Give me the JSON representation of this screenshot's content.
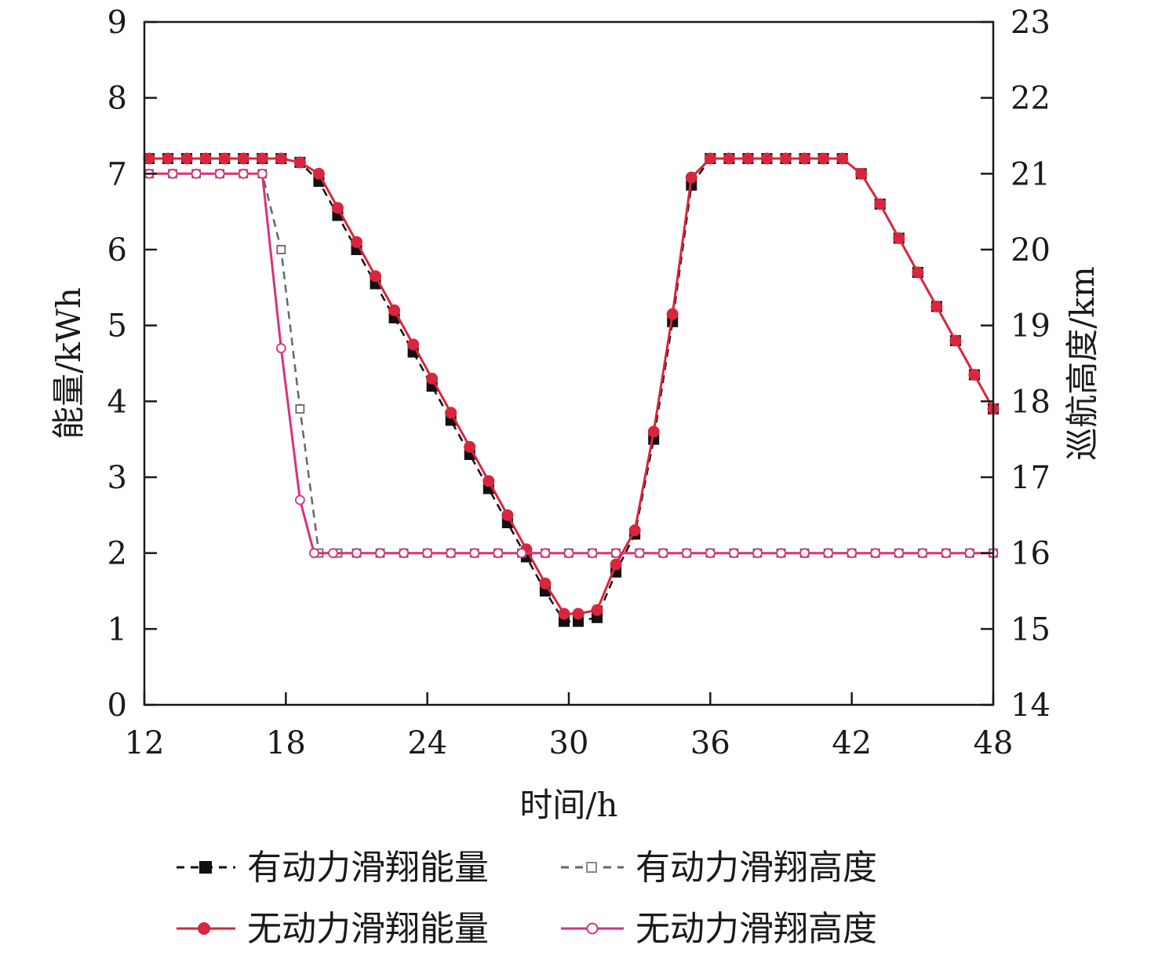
{
  "chart_data": {
    "type": "line",
    "xlabel": "时间/h",
    "ylabel_left": "能量/kWh",
    "ylabel_right": "巡航高度/km",
    "xlim": [
      12,
      48
    ],
    "ylim_left": [
      0,
      9
    ],
    "ylim_right": [
      14,
      23
    ],
    "xticks": [
      12,
      18,
      24,
      30,
      36,
      42,
      48
    ],
    "yticks_left": [
      0,
      1,
      2,
      3,
      4,
      5,
      6,
      7,
      8,
      9
    ],
    "yticks_right": [
      14,
      15,
      16,
      17,
      18,
      19,
      20,
      21,
      22,
      23
    ],
    "grid": false,
    "legend_position": "bottom",
    "series": [
      {
        "name": "有动力滑翔能量",
        "axis": "left",
        "color": "#111111",
        "line_style": "dashed",
        "marker": "filled-square",
        "x": [
          12.2,
          13.0,
          13.8,
          14.6,
          15.4,
          16.2,
          17.0,
          17.8,
          18.6,
          19.4,
          20.2,
          21.0,
          21.8,
          22.6,
          23.4,
          24.2,
          25.0,
          25.8,
          26.6,
          27.4,
          28.2,
          29.0,
          29.8,
          30.4,
          31.2,
          32.0,
          32.8,
          33.6,
          34.4,
          35.2,
          36.0,
          36.8,
          37.6,
          38.4,
          39.2,
          40.0,
          40.8,
          41.6,
          42.4,
          43.2,
          44.0,
          44.8,
          45.6,
          46.4,
          47.2,
          48.0
        ],
        "values": [
          7.2,
          7.2,
          7.2,
          7.2,
          7.2,
          7.2,
          7.2,
          7.2,
          7.15,
          6.9,
          6.45,
          6.0,
          5.55,
          5.1,
          4.65,
          4.2,
          3.75,
          3.3,
          2.85,
          2.4,
          1.95,
          1.5,
          1.1,
          1.1,
          1.15,
          1.75,
          2.25,
          3.5,
          5.05,
          6.85,
          7.2,
          7.2,
          7.2,
          7.2,
          7.2,
          7.2,
          7.2,
          7.2,
          7.0,
          6.6,
          6.15,
          5.7,
          5.25,
          4.8,
          4.35,
          3.9
        ]
      },
      {
        "name": "有动力滑翔高度",
        "axis": "right",
        "color": "#666666",
        "line_style": "dashed",
        "marker": "open-square",
        "x": [
          12.2,
          13.2,
          14.2,
          15.2,
          16.2,
          17.0,
          17.8,
          18.6,
          19.4,
          20.2,
          21.0,
          22.0,
          23.0,
          24.0,
          25.0,
          26.0,
          27.0,
          28.0,
          29.0,
          30.0,
          31.0,
          32.0,
          33.0,
          34.0,
          35.0,
          36.0,
          37.0,
          38.0,
          39.0,
          40.0,
          41.0,
          42.0,
          43.0,
          44.0,
          45.0,
          46.0,
          47.0,
          48.0
        ],
        "values": [
          21.0,
          21.0,
          21.0,
          21.0,
          21.0,
          21.0,
          20.0,
          17.9,
          16.0,
          16.0,
          16.0,
          16.0,
          16.0,
          16.0,
          16.0,
          16.0,
          16.0,
          16.0,
          16.0,
          16.0,
          16.0,
          16.0,
          16.0,
          16.0,
          16.0,
          16.0,
          16.0,
          16.0,
          16.0,
          16.0,
          16.0,
          16.0,
          16.0,
          16.0,
          16.0,
          16.0,
          16.0,
          16.0
        ]
      },
      {
        "name": "无动力滑翔能量",
        "axis": "left",
        "color": "#d7263d",
        "line_style": "solid",
        "marker": "filled-circle",
        "x": [
          12.2,
          13.0,
          13.8,
          14.6,
          15.4,
          16.2,
          17.0,
          17.8,
          18.6,
          19.4,
          20.2,
          21.0,
          21.8,
          22.6,
          23.4,
          24.2,
          25.0,
          25.8,
          26.6,
          27.4,
          28.2,
          29.0,
          29.8,
          30.4,
          31.2,
          32.0,
          32.8,
          33.6,
          34.4,
          35.2,
          36.0,
          36.8,
          37.6,
          38.4,
          39.2,
          40.0,
          40.8,
          41.6,
          42.4,
          43.2,
          44.0,
          44.8,
          45.6,
          46.4,
          47.2,
          48.0
        ],
        "values": [
          7.2,
          7.2,
          7.2,
          7.2,
          7.2,
          7.2,
          7.2,
          7.2,
          7.15,
          7.0,
          6.55,
          6.1,
          5.65,
          5.2,
          4.75,
          4.3,
          3.85,
          3.4,
          2.95,
          2.5,
          2.05,
          1.6,
          1.2,
          1.2,
          1.25,
          1.85,
          2.3,
          3.6,
          5.15,
          6.95,
          7.2,
          7.2,
          7.2,
          7.2,
          7.2,
          7.2,
          7.2,
          7.2,
          7.0,
          6.6,
          6.15,
          5.7,
          5.25,
          4.8,
          4.35,
          3.9
        ]
      },
      {
        "name": "无动力滑翔高度",
        "axis": "right",
        "color": "#d6337a",
        "line_style": "solid",
        "marker": "open-circle",
        "x": [
          12.2,
          13.2,
          14.2,
          15.2,
          16.2,
          17.0,
          17.8,
          18.6,
          19.2,
          20.0,
          21.0,
          22.0,
          23.0,
          24.0,
          25.0,
          26.0,
          27.0,
          28.0,
          29.0,
          30.0,
          31.0,
          32.0,
          33.0,
          34.0,
          35.0,
          36.0,
          37.0,
          38.0,
          39.0,
          40.0,
          41.0,
          42.0,
          43.0,
          44.0,
          45.0,
          46.0,
          47.0,
          48.0
        ],
        "values": [
          21.0,
          21.0,
          21.0,
          21.0,
          21.0,
          21.0,
          18.7,
          16.7,
          16.0,
          16.0,
          16.0,
          16.0,
          16.0,
          16.0,
          16.0,
          16.0,
          16.0,
          16.0,
          16.0,
          16.0,
          16.0,
          16.0,
          16.0,
          16.0,
          16.0,
          16.0,
          16.0,
          16.0,
          16.0,
          16.0,
          16.0,
          16.0,
          16.0,
          16.0,
          16.0,
          16.0,
          16.0,
          16.0
        ]
      }
    ]
  }
}
